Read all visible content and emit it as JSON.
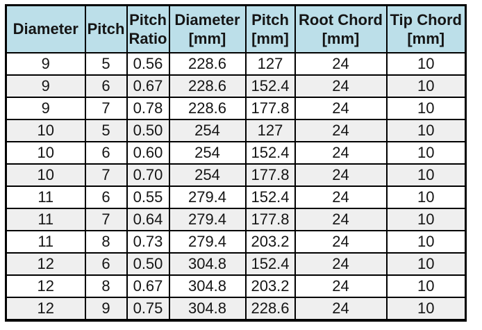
{
  "colors": {
    "header_bg": "#bcdfe9",
    "row_alt": "#efefef",
    "border": "#000000"
  },
  "table": {
    "headers": [
      {
        "line1": "Diameter",
        "line2": ""
      },
      {
        "line1": "Pitch",
        "line2": ""
      },
      {
        "line1": "Pitch",
        "line2": "Ratio"
      },
      {
        "line1": "Diameter",
        "line2": "[mm]"
      },
      {
        "line1": "Pitch",
        "line2": "[mm]"
      },
      {
        "line1": "Root Chord",
        "line2": "[mm]"
      },
      {
        "line1": "Tip Chord",
        "line2": "[mm]"
      }
    ],
    "column_names": [
      "diameter-in",
      "pitch-in",
      "pitch-ratio",
      "diameter-mm",
      "pitch-mm",
      "root-chord-mm",
      "tip-chord-mm"
    ]
  },
  "chart_data": {
    "type": "table",
    "columns": [
      "Diameter",
      "Pitch",
      "Pitch Ratio",
      "Diameter [mm]",
      "Pitch [mm]",
      "Root Chord [mm]",
      "Tip Chord [mm]"
    ],
    "rows": [
      [
        "9",
        "5",
        "0.56",
        "228.6",
        "127",
        "24",
        "10"
      ],
      [
        "9",
        "6",
        "0.67",
        "228.6",
        "152.4",
        "24",
        "10"
      ],
      [
        "9",
        "7",
        "0.78",
        "228.6",
        "177.8",
        "24",
        "10"
      ],
      [
        "10",
        "5",
        "0.50",
        "254",
        "127",
        "24",
        "10"
      ],
      [
        "10",
        "6",
        "0.60",
        "254",
        "152.4",
        "24",
        "10"
      ],
      [
        "10",
        "7",
        "0.70",
        "254",
        "177.8",
        "24",
        "10"
      ],
      [
        "11",
        "6",
        "0.55",
        "279.4",
        "152.4",
        "24",
        "10"
      ],
      [
        "11",
        "7",
        "0.64",
        "279.4",
        "177.8",
        "24",
        "10"
      ],
      [
        "11",
        "8",
        "0.73",
        "279.4",
        "203.2",
        "24",
        "10"
      ],
      [
        "12",
        "6",
        "0.50",
        "304.8",
        "152.4",
        "24",
        "10"
      ],
      [
        "12",
        "8",
        "0.67",
        "304.8",
        "203.2",
        "24",
        "10"
      ],
      [
        "12",
        "9",
        "0.75",
        "304.8",
        "228.6",
        "24",
        "10"
      ]
    ]
  }
}
